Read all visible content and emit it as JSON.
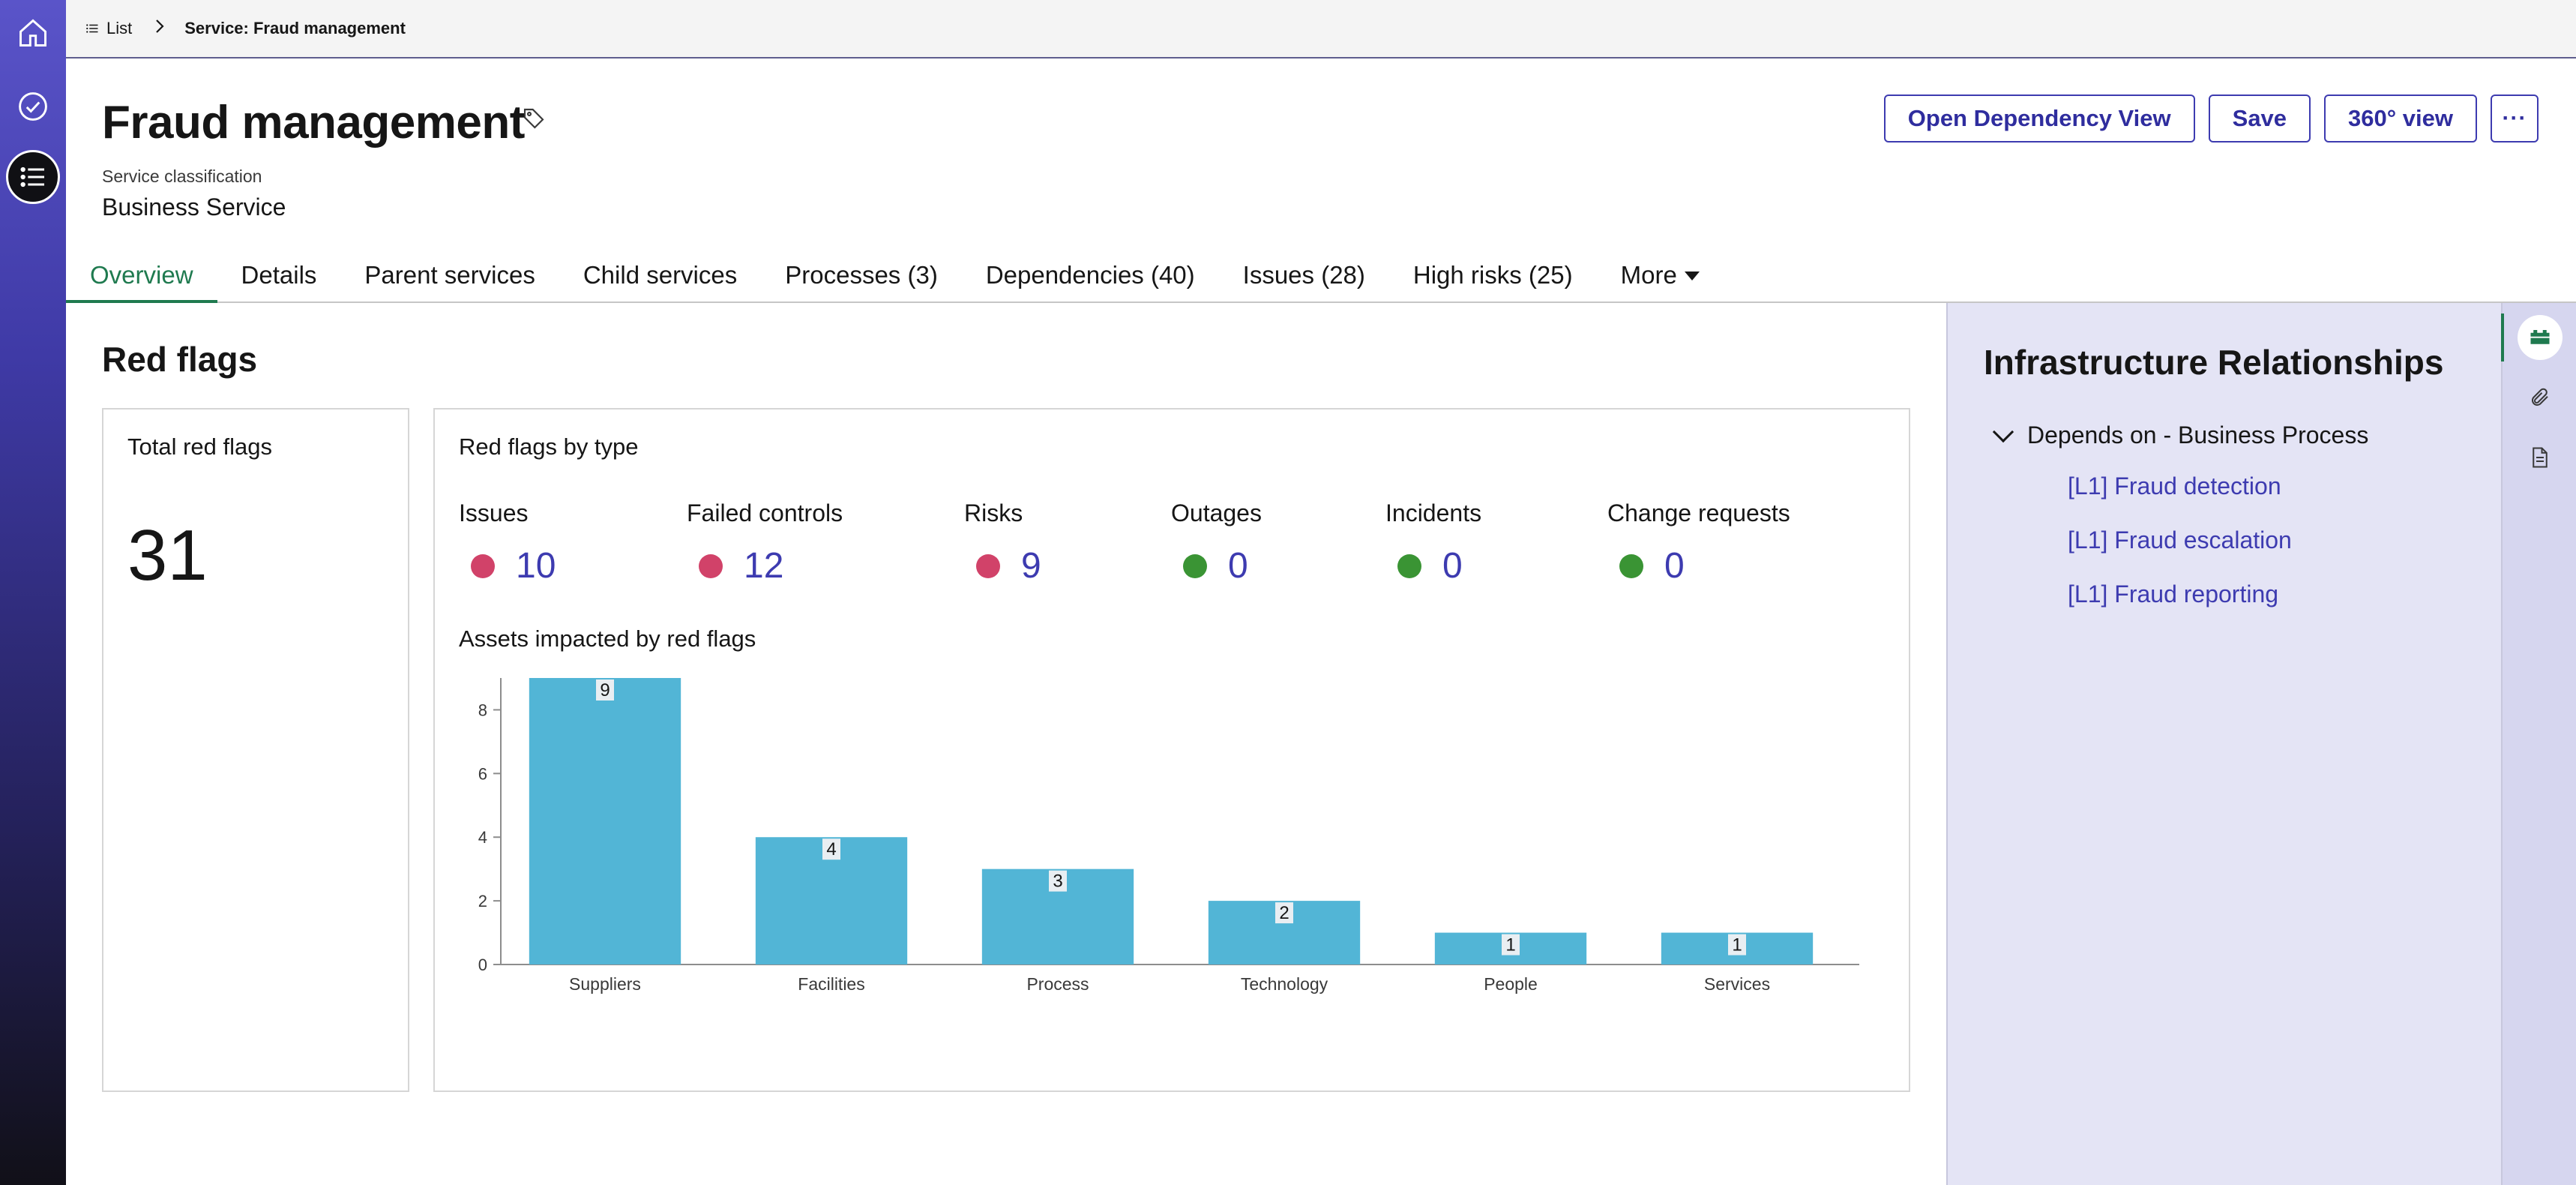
{
  "breadcrumb": {
    "list_label": "List",
    "current": "Service: Fraud management"
  },
  "header": {
    "title": "Fraud management",
    "classification_label": "Service classification",
    "classification_value": "Business Service"
  },
  "actions": {
    "dependency_view": "Open Dependency View",
    "save": "Save",
    "view_360": "360° view",
    "more": "···"
  },
  "tabs": [
    {
      "label": "Overview",
      "active": true
    },
    {
      "label": "Details"
    },
    {
      "label": "Parent services"
    },
    {
      "label": "Child services"
    },
    {
      "label": "Processes (3)"
    },
    {
      "label": "Dependencies (40)"
    },
    {
      "label": "Issues (28)"
    },
    {
      "label": "High risks (25)"
    },
    {
      "label": "More"
    }
  ],
  "red_flags": {
    "section_title": "Red flags",
    "total_title": "Total red flags",
    "total_value": "31",
    "by_type_title": "Red flags by type",
    "types": [
      {
        "label": "Issues",
        "value": "10",
        "status_color": "#d14269"
      },
      {
        "label": "Failed controls",
        "value": "12",
        "status_color": "#d14269"
      },
      {
        "label": "Risks",
        "value": "9",
        "status_color": "#d14269"
      },
      {
        "label": "Outages",
        "value": "0",
        "status_color": "#3a9434"
      },
      {
        "label": "Incidents",
        "value": "0",
        "status_color": "#3a9434"
      },
      {
        "label": "Change requests",
        "value": "0",
        "status_color": "#3a9434"
      }
    ],
    "chart_title": "Assets impacted by red flags"
  },
  "chart_data": {
    "type": "bar",
    "title": "Assets impacted by red flags",
    "categories": [
      "Suppliers",
      "Facilities",
      "Process",
      "Technology",
      "People",
      "Services"
    ],
    "values": [
      9,
      4,
      3,
      2,
      1,
      1
    ],
    "ylim": [
      0,
      9
    ],
    "yticks": [
      0,
      2,
      4,
      6,
      8
    ],
    "bar_color": "#52b5d6",
    "data_labels": true,
    "grid": false
  },
  "right_panel": {
    "title": "Infrastructure Relationships",
    "group_label": "Depends on - Business Process",
    "links": [
      "[L1] Fraud detection",
      "[L1] Fraud escalation",
      "[L1] Fraud reporting"
    ]
  },
  "colors": {
    "accent": "#3d3bb0",
    "tab_active": "#1f7a4f"
  }
}
